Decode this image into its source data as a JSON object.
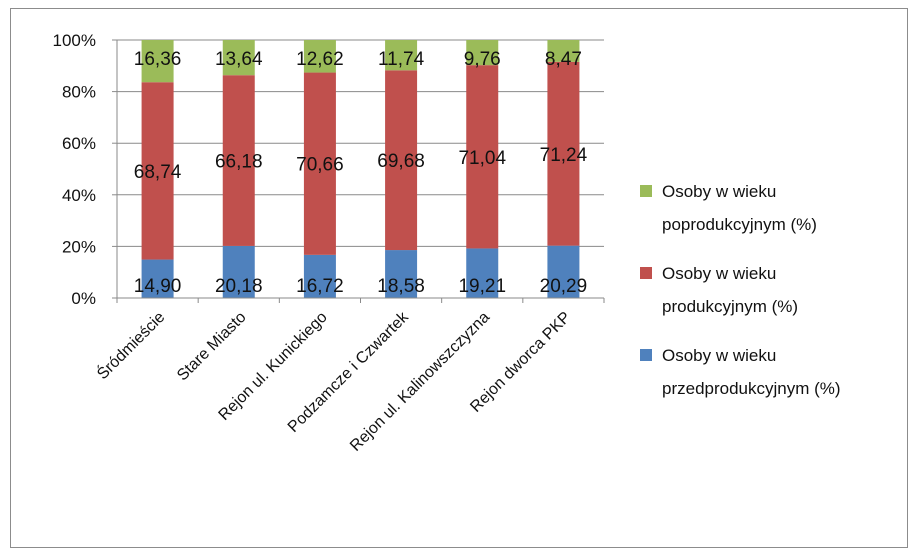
{
  "chart_data": {
    "type": "bar",
    "stacked": true,
    "percent": true,
    "categories": [
      "Śródmieście",
      "Stare Miasto",
      "Rejon ul. Kunickiego",
      "Podzamcze i Czwartek",
      "Rejon ul. Kalinowszczyzna",
      "Rejon dworca PKP"
    ],
    "series": [
      {
        "name": "Osoby w wieku przedprodukcyjnym (%)",
        "legend_lines": [
          "Osoby w wieku",
          "przedprodukcyjnym (%)"
        ],
        "values": [
          14.9,
          20.18,
          16.72,
          18.58,
          19.21,
          20.29
        ],
        "labels": [
          "14,90",
          "20,18",
          "16,72",
          "18,58",
          "19,21",
          "20,29"
        ],
        "color": "#4f81bd"
      },
      {
        "name": "Osoby w wieku produkcyjnym (%)",
        "legend_lines": [
          "Osoby w wieku",
          "produkcyjnym (%)"
        ],
        "values": [
          68.74,
          66.18,
          70.66,
          69.68,
          71.04,
          71.24
        ],
        "labels": [
          "68,74",
          "66,18",
          "70,66",
          "69,68",
          "71,04",
          "71,24"
        ],
        "color": "#c0504d"
      },
      {
        "name": "Osoby w wieku poprodukcyjnym (%)",
        "legend_lines": [
          "Osoby w wieku",
          "poprodukcyjnym (%)"
        ],
        "values": [
          16.36,
          13.64,
          12.62,
          11.74,
          9.76,
          8.47
        ],
        "labels": [
          "16,36",
          "13,64",
          "12,62",
          "11,74",
          "9,76",
          "8,47"
        ],
        "color": "#9bbb59"
      }
    ],
    "yticks": [
      "0%",
      "20%",
      "40%",
      "60%",
      "80%",
      "100%"
    ],
    "ylim": [
      0,
      100
    ],
    "grid": true,
    "legend_position": "right",
    "title": "",
    "xlabel": "",
    "ylabel": ""
  }
}
